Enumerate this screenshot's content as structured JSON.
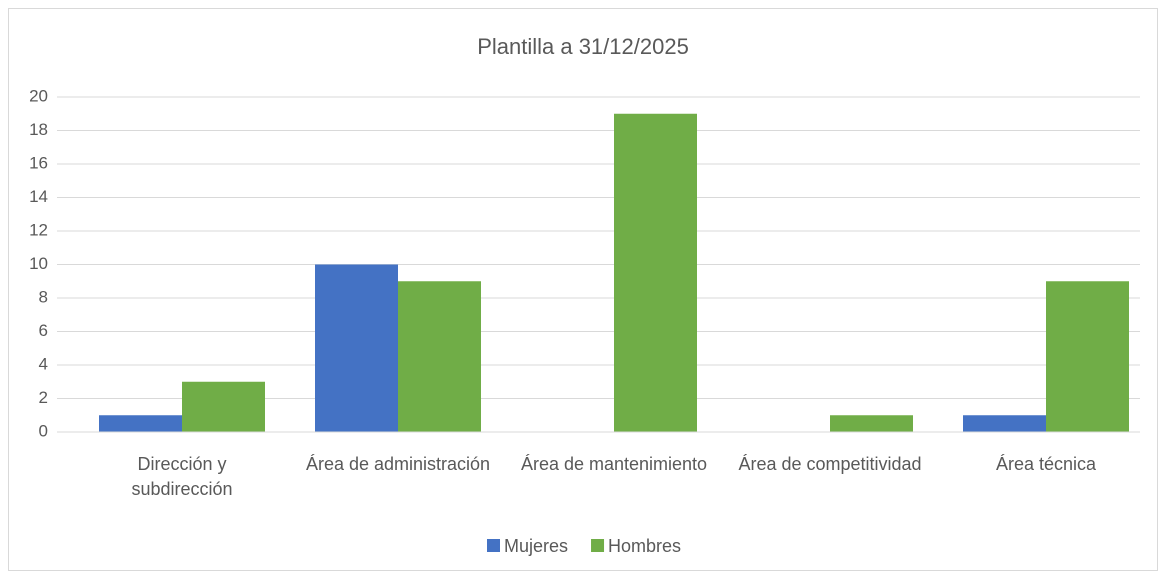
{
  "chart_data": {
    "type": "bar",
    "title": "Plantilla a 31/12/2025",
    "categories": [
      "Dirección y subdirección",
      "Área de administración",
      "Área de mantenimiento",
      "Área de competitividad",
      "Área técnica"
    ],
    "series": [
      {
        "name": "Mujeres",
        "color": "#4472c4",
        "values": [
          1,
          10,
          0,
          0,
          1
        ]
      },
      {
        "name": "Hombres",
        "color": "#70ad47",
        "values": [
          3,
          9,
          19,
          1,
          9
        ]
      }
    ],
    "ylim": [
      0,
      20
    ],
    "yticks": [
      0,
      2,
      4,
      6,
      8,
      10,
      12,
      14,
      16,
      18,
      20
    ],
    "grid": true,
    "legend": "bottom"
  }
}
